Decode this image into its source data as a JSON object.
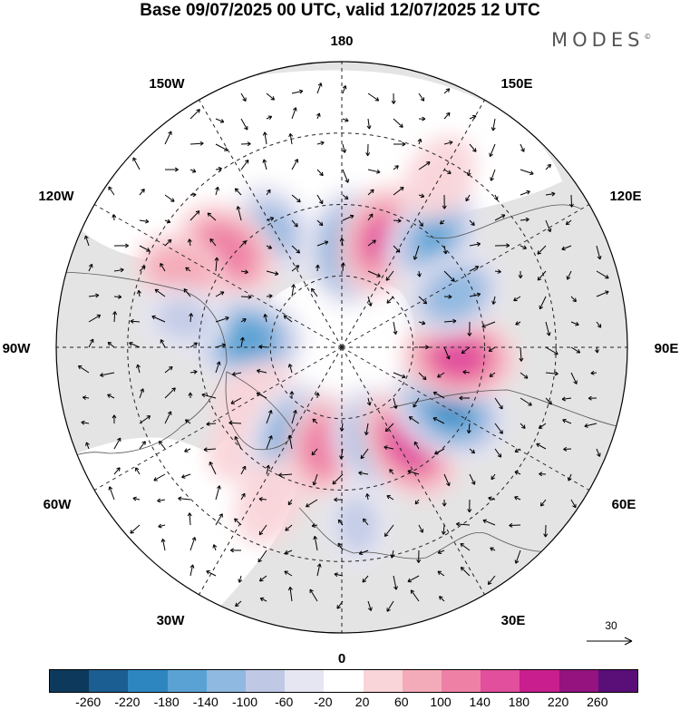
{
  "title": "Base 09/07/2025 00 UTC, valid 12/07/2025 12 UTC",
  "brand": "MODES",
  "brand_mark": "©",
  "longitude_labels": {
    "lon_180": "180",
    "lon_150E": "150E",
    "lon_120E": "120E",
    "lon_90E": "90E",
    "lon_60E": "60E",
    "lon_30E": "30E",
    "lon_0": "0",
    "lon_30W": "30W",
    "lon_60W": "60W",
    "lon_90W": "90W",
    "lon_120W": "120W",
    "lon_150W": "150W"
  },
  "reference_vector": "30",
  "legend": {
    "colors": [
      "#0d3a5c",
      "#1b5e91",
      "#2e86c1",
      "#5aa2d3",
      "#8fb9e0",
      "#bfc9e6",
      "#e6e6f2",
      "#ffffff",
      "#f9d5d9",
      "#f4abb9",
      "#ee80a6",
      "#e14f9d",
      "#c91e8e",
      "#94137f",
      "#5a0e78"
    ],
    "ticks": [
      "-260",
      "-220",
      "-180",
      "-140",
      "-100",
      "-60",
      "-20",
      "20",
      "60",
      "100",
      "140",
      "180",
      "220",
      "260"
    ]
  },
  "anomalies": [
    {
      "lon": 175,
      "lat": 62,
      "value": -170
    },
    {
      "lon": 160,
      "lat": 58,
      "value": 150
    },
    {
      "lon": 140,
      "lat": 50,
      "value": -140
    },
    {
      "lon": 150,
      "lat": 35,
      "value": 60
    },
    {
      "lon": -150,
      "lat": 52,
      "value": -100
    },
    {
      "lon": -130,
      "lat": 48,
      "value": 140
    },
    {
      "lon": -115,
      "lat": 40,
      "value": 80
    },
    {
      "lon": -95,
      "lat": 63,
      "value": -170
    },
    {
      "lon": -100,
      "lat": 45,
      "value": -60
    },
    {
      "lon": -60,
      "lat": 62,
      "value": 60
    },
    {
      "lon": -45,
      "lat": 52,
      "value": 60
    },
    {
      "lon": -30,
      "lat": 62,
      "value": -140
    },
    {
      "lon": -10,
      "lat": 62,
      "value": 120
    },
    {
      "lon": 20,
      "lat": 62,
      "value": -150
    },
    {
      "lon": 35,
      "lat": 57,
      "value": 170
    },
    {
      "lon": 60,
      "lat": 55,
      "value": -190
    },
    {
      "lon": 85,
      "lat": 57,
      "value": 160
    },
    {
      "lon": 115,
      "lat": 55,
      "value": -120
    },
    {
      "lon": -25,
      "lat": 42,
      "value": 60
    },
    {
      "lon": 5,
      "lat": 40,
      "value": -60
    }
  ]
}
